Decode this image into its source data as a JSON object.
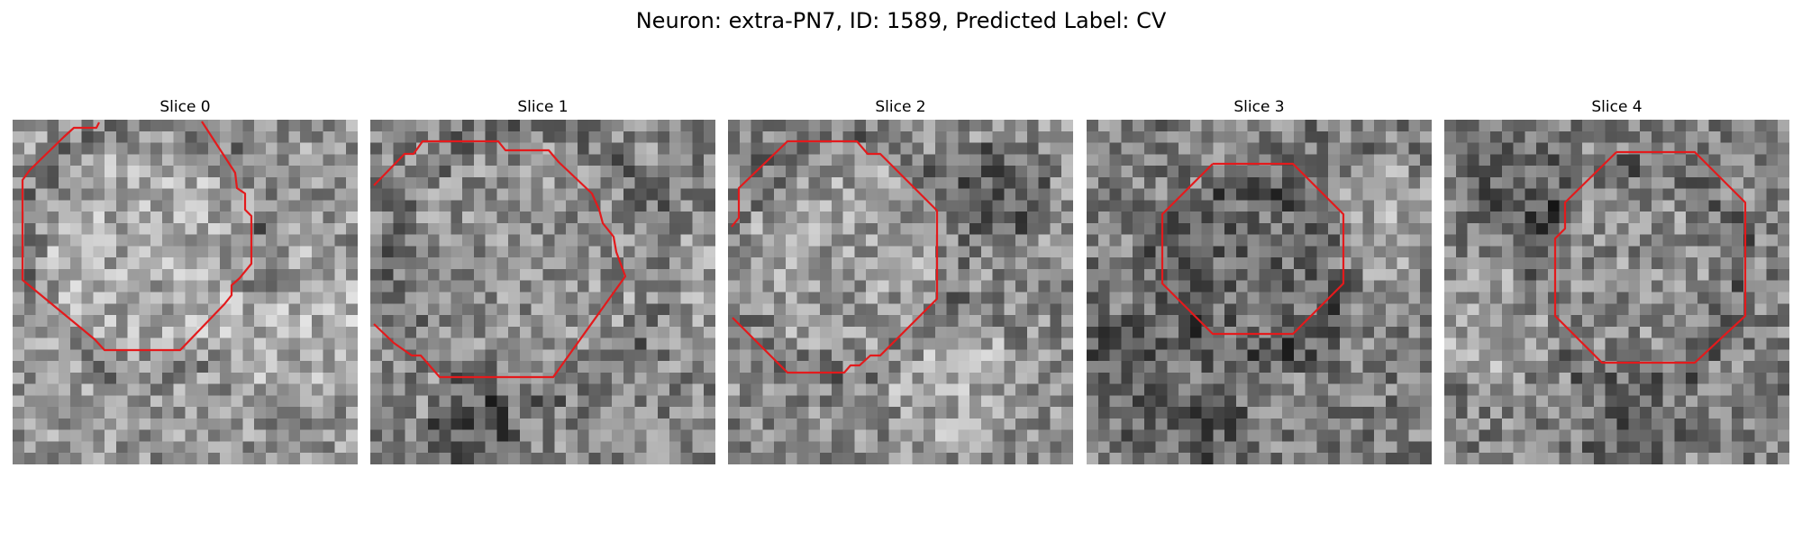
{
  "title": "Neuron: extra-PN7, ID: 1589, Predicted Label: CV",
  "outline_color": "#e31a1c",
  "slices": [
    {
      "title": "Slice 0"
    },
    {
      "title": "Slice 1"
    },
    {
      "title": "Slice 2"
    },
    {
      "title": "Slice 3"
    },
    {
      "title": "Slice 4"
    }
  ]
}
